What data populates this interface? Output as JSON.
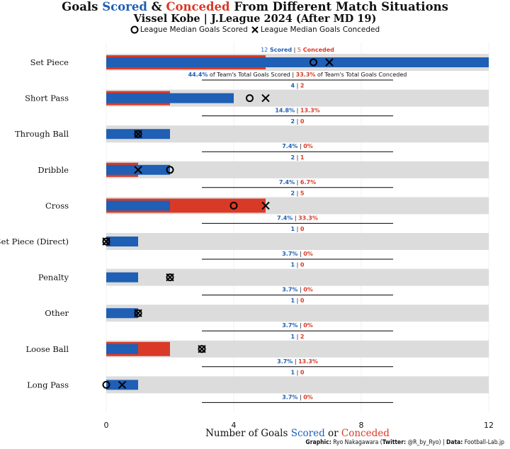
{
  "header": {
    "title_part1": "Goals ",
    "title_scored": "Scored",
    "title_amp": " & ",
    "title_conceded": "Conceded",
    "title_part2": " From Different Match Situations",
    "subtitle": "Vissel Kobe | J.League 2024 (After MD 19)"
  },
  "legend": {
    "median_scored": "League Median Goals Scored",
    "median_conceded": "League Median Goals Conceded"
  },
  "xaxis": {
    "label_part1": "Number of Goals ",
    "label_scored": "Scored",
    "label_or": " or ",
    "label_conceded": "Conceded"
  },
  "caption": {
    "graphic_label": "Graphic:",
    "graphic_value": " Ryo Nakagawara (",
    "twitter_label": "Twitter:",
    "twitter_value": " @R_by_Ryo) | ",
    "data_label": "Data:",
    "data_value": " Football-Lab.jp"
  },
  "colors": {
    "scored": "#1f5fb5",
    "conceded": "#d93a27",
    "background_band": "#dcdcdc"
  },
  "chart_data": {
    "type": "bar",
    "orientation": "horizontal",
    "xlim": [
      0,
      12
    ],
    "xticks": [
      0,
      4,
      8,
      12
    ],
    "categories": [
      "Set Piece",
      "Short Pass",
      "Through Ball",
      "Dribble",
      "Cross",
      "Set Piece (Direct)",
      "Penalty",
      "Other",
      "Loose Ball",
      "Long Pass"
    ],
    "series": [
      {
        "name": "Scored",
        "values": [
          12,
          4,
          2,
          2,
          2,
          1,
          1,
          1,
          1,
          1
        ]
      },
      {
        "name": "Conceded",
        "values": [
          5,
          2,
          0,
          1,
          5,
          0,
          0,
          0,
          2,
          0
        ]
      }
    ],
    "league_median_scored": [
      6.5,
      4.5,
      1,
      2,
      4,
      0,
      2,
      1,
      3,
      0
    ],
    "league_median_conceded": [
      7,
      5,
      1,
      1,
      5,
      0,
      2,
      1,
      3,
      0.5
    ],
    "pct_scored": [
      "44.4%",
      "14.8%",
      "7.4%",
      "7.4%",
      "7.4%",
      "3.7%",
      "3.7%",
      "3.7%",
      "3.7%",
      "3.7%"
    ],
    "pct_conceded": [
      "33.3%",
      "13.3%",
      "0%",
      "6.7%",
      "33.3%",
      "0%",
      "0%",
      "0%",
      "13.3%",
      "0%"
    ],
    "first_row_count_words": {
      "scored": "Scored",
      "conceded": "Conceded"
    },
    "first_row_pct_words": {
      "scored": "of Team's Total Goals Scored",
      "conceded": "of Team's Total Goals Conceded"
    }
  }
}
